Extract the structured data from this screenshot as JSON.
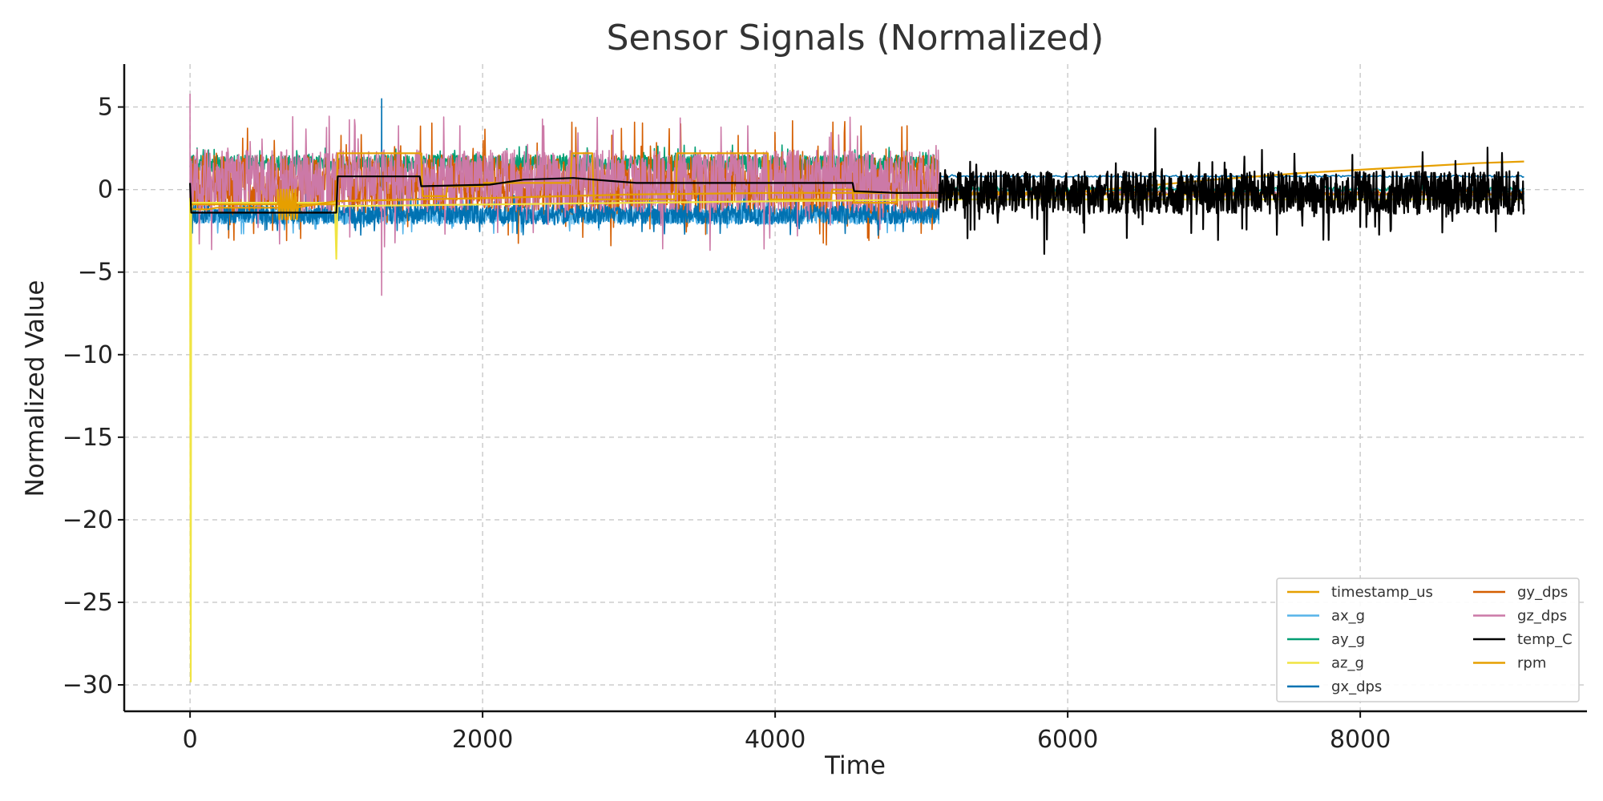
{
  "chart_data": {
    "type": "line",
    "title": "Sensor Signals (Normalized)",
    "xlabel": "Time",
    "ylabel": "Normalized Value",
    "xlim": [
      -450,
      9550
    ],
    "ylim": [
      -31.6,
      7.6
    ],
    "xticks": [
      0,
      2000,
      4000,
      6000,
      8000
    ],
    "yticks": [
      5,
      0,
      -5,
      -10,
      -15,
      -20,
      -25,
      -30
    ],
    "xtick_labels": [
      "0",
      "2000",
      "4000",
      "6000",
      "8000"
    ],
    "ytick_labels": [
      "5",
      "0",
      "−5",
      "−10",
      "−15",
      "−20",
      "−25",
      "−30"
    ],
    "grid": true,
    "legend_position": "lower-right",
    "legend_columns": 2,
    "series": [
      {
        "name": "timestamp_us",
        "color": "#E69F00",
        "kind": "steps",
        "x_range": [
          0,
          9120
        ],
        "points": [
          [
            0,
            -1.2
          ],
          [
            120,
            -1.2
          ],
          [
            180,
            -1.1
          ],
          [
            720,
            -1.1
          ],
          [
            860,
            -0.9
          ],
          [
            1000,
            -0.7
          ],
          [
            2100,
            -0.5
          ],
          [
            3000,
            -0.3
          ],
          [
            4000,
            -0.2
          ],
          [
            5000,
            -0.2
          ],
          [
            5120,
            -0.2
          ],
          [
            5400,
            -0.2
          ],
          [
            6000,
            -0.2
          ],
          [
            7000,
            0.6
          ],
          [
            7600,
            1.0
          ],
          [
            8200,
            1.3
          ],
          [
            8800,
            1.6
          ],
          [
            9120,
            1.7
          ]
        ]
      },
      {
        "name": "ax_g",
        "color": "#56B4E9",
        "kind": "noise",
        "x_range": [
          0,
          5120
        ],
        "center": -1.6,
        "amplitude": 0.5,
        "tail_x_range": [
          5120,
          9120
        ],
        "tail_center": 0.0,
        "tail_amplitude": 0.15
      },
      {
        "name": "ay_g",
        "color": "#009E73",
        "kind": "noise",
        "x_range": [
          0,
          5120
        ],
        "center": 1.6,
        "amplitude": 0.5,
        "tail_x_range": [
          5120,
          9120
        ],
        "tail_center": 0.0,
        "tail_amplitude": 0.15
      },
      {
        "name": "az_g",
        "color": "#F0E442",
        "kind": "path",
        "x_range": [
          0,
          9120
        ],
        "points": [
          [
            0,
            -0.5
          ],
          [
            5,
            -29.8
          ],
          [
            8,
            -1.5
          ],
          [
            15,
            -0.8
          ],
          [
            990,
            -0.8
          ],
          [
            1000,
            -4.2
          ],
          [
            1008,
            -1.0
          ],
          [
            5120,
            -0.6
          ],
          [
            9120,
            -0.6
          ]
        ]
      },
      {
        "name": "gx_dps",
        "color": "#0072B2",
        "kind": "noise",
        "x_range": [
          0,
          5120
        ],
        "center": -1.5,
        "amplitude": 0.6,
        "spike": [
          1310,
          5.5
        ],
        "tail_x_range": [
          5120,
          9120
        ],
        "tail_center": 0.8,
        "tail_amplitude": 0.05
      },
      {
        "name": "gy_dps",
        "color": "#D55E00",
        "kind": "noise",
        "x_range": [
          0,
          5120
        ],
        "center": 0.3,
        "amplitude": 1.8,
        "tail_x_range": [
          5120,
          9120
        ],
        "tail_center": -0.2,
        "tail_amplitude": 0.1
      },
      {
        "name": "gz_dps",
        "color": "#CC79A7",
        "kind": "noise",
        "x_range": [
          0,
          5120
        ],
        "center": 0.5,
        "amplitude": 1.9,
        "spike": [
          1310,
          -6.4
        ],
        "start_spike": [
          0,
          5.8
        ],
        "tail_x_range": [
          5120,
          9120
        ],
        "tail_center": -0.3,
        "tail_amplitude": 0.15
      },
      {
        "name": "temp_C",
        "color": "#000000",
        "kind": "steps",
        "x_range": [
          0,
          9120
        ],
        "points": [
          [
            0,
            0.4
          ],
          [
            8,
            -1.4
          ],
          [
            1000,
            -1.4
          ],
          [
            1010,
            0.8
          ],
          [
            1570,
            0.8
          ],
          [
            1580,
            0.2
          ],
          [
            2050,
            0.3
          ],
          [
            2280,
            0.6
          ],
          [
            2620,
            0.7
          ],
          [
            3050,
            0.4
          ],
          [
            4530,
            0.4
          ],
          [
            4540,
            -0.1
          ],
          [
            4830,
            -0.2
          ],
          [
            5120,
            -0.2
          ]
        ],
        "noise_tail": {
          "x_range": [
            5120,
            9120
          ],
          "center": -0.2,
          "amplitude": 1.3,
          "peak": 3.7,
          "trough": -3.9
        }
      },
      {
        "name": "rpm",
        "color": "#E69F00",
        "kind": "steps",
        "x_range": [
          0,
          9120
        ],
        "points": [
          [
            0,
            -0.9
          ],
          [
            600,
            -0.9
          ],
          [
            600,
            0.0
          ],
          [
            610,
            -1.8
          ],
          [
            620,
            0.0
          ],
          [
            630,
            -1.8
          ],
          [
            640,
            0.0
          ],
          [
            650,
            -1.8
          ],
          [
            660,
            0.0
          ],
          [
            670,
            -1.8
          ],
          [
            680,
            0.0
          ],
          [
            690,
            -1.8
          ],
          [
            700,
            0.0
          ],
          [
            710,
            -1.8
          ],
          [
            720,
            0.0
          ],
          [
            730,
            -1.8
          ],
          [
            740,
            -0.9
          ],
          [
            1000,
            -0.9
          ],
          [
            1010,
            2.2
          ],
          [
            1580,
            2.2
          ],
          [
            1590,
            -0.4
          ],
          [
            1750,
            -0.4
          ],
          [
            1760,
            0.2
          ],
          [
            2000,
            0.2
          ],
          [
            2010,
            0.4
          ],
          [
            2600,
            0.4
          ],
          [
            2610,
            2.2
          ],
          [
            2750,
            2.2
          ],
          [
            2760,
            -0.6
          ],
          [
            3320,
            -0.6
          ],
          [
            3330,
            2.2
          ],
          [
            3950,
            2.2
          ],
          [
            3960,
            -0.6
          ],
          [
            4380,
            -0.6
          ],
          [
            4390,
            0.0
          ],
          [
            4530,
            0.0
          ],
          [
            4540,
            -0.8
          ],
          [
            4830,
            -0.8
          ],
          [
            4840,
            -0.2
          ],
          [
            5120,
            -0.2
          ],
          [
            5120,
            -0.3
          ],
          [
            9120,
            -0.3
          ]
        ]
      }
    ]
  }
}
